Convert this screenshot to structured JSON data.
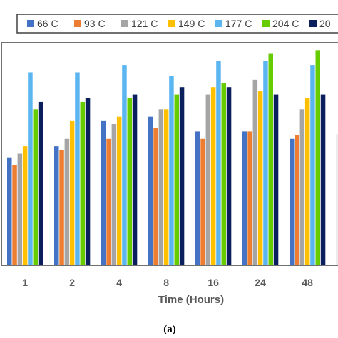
{
  "chart_data": {
    "type": "bar",
    "xlabel": "Time (Hours)",
    "categories": [
      "1",
      "2",
      "4",
      "8",
      "16",
      "24",
      "48"
    ],
    "series": [
      {
        "name": "66 C",
        "color": "#4472C4",
        "values": [
          29,
          32,
          39,
          40,
          36,
          36,
          34
        ]
      },
      {
        "name": "93 C",
        "color": "#ED7D31",
        "values": [
          27,
          31,
          34,
          37,
          34,
          36,
          35
        ]
      },
      {
        "name": "121 C",
        "color": "#A5A5A5",
        "values": [
          30,
          34,
          38,
          42,
          46,
          50,
          42
        ]
      },
      {
        "name": "149 C",
        "color": "#FFC000",
        "values": [
          32,
          39,
          40,
          42,
          48,
          47,
          45
        ]
      },
      {
        "name": "177 C",
        "color": "#5BB5F0",
        "values": [
          52,
          52,
          54,
          51,
          55,
          55,
          54
        ]
      },
      {
        "name": "204 C",
        "color": "#66CC00",
        "values": [
          42,
          44,
          45,
          46,
          49,
          57,
          58
        ]
      },
      {
        "name": "20",
        "color": "#0B1F5C",
        "values": [
          44,
          45,
          46,
          48,
          48,
          46,
          46
        ]
      }
    ],
    "ylim": [
      0,
      60
    ],
    "grid": false,
    "legend": "top"
  },
  "caption": "(a)"
}
